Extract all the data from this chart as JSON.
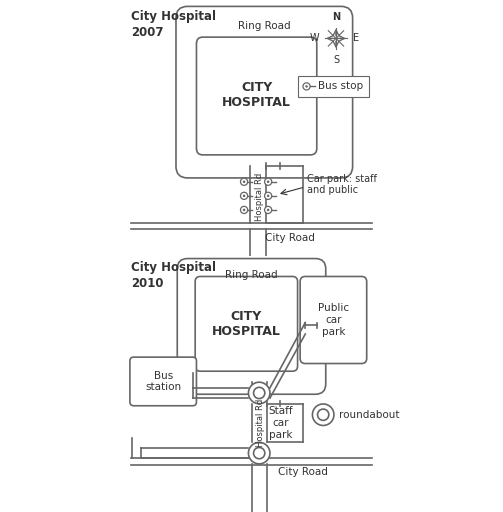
{
  "bg_color": "#ffffff",
  "line_color": "#666666",
  "text_color": "#333333",
  "map1_title": "City Hospital\n2007",
  "map2_title": "City Hospital\n2010",
  "hospital_label": "CITY\nHOSPITAL",
  "ring_road_label": "Ring Road",
  "city_road_label": "City Road",
  "hospital_rd_label": "Hospital Rd",
  "car_park_label_2007": "Car park: staff\nand public",
  "public_car_park_label": "Public\ncar\npark",
  "staff_car_park_label": "Staff\ncar\npark",
  "bus_station_label": "Bus\nstation",
  "roundabout_label": "roundabout",
  "bus_stop_label": "Bus stop",
  "compass_n": "N",
  "compass_s": "S",
  "compass_e": "E",
  "compass_w": "W"
}
